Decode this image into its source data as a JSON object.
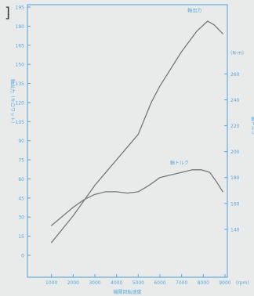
{
  "chart_data": {
    "type": "line",
    "x_ticks": [
      "1000",
      "2000",
      "3000",
      "4000",
      "5000",
      "6000",
      "7000",
      "8000",
      "9000"
    ],
    "x_unit": "(rpm)",
    "xlabel": "機関回転速度",
    "xlim": [
      0,
      9000
    ],
    "y_left_ticks": [
      "0",
      "15",
      "30",
      "45",
      "60",
      "75",
      "90",
      "105",
      "120",
      "135",
      "150",
      "165",
      "180",
      "195"
    ],
    "ylabel_left": "軸出力（キロワット）",
    "ylim_left": [
      0,
      195
    ],
    "y_right_ticks": [
      "140",
      "160",
      "180",
      "200",
      "220",
      "240",
      "260"
    ],
    "y_right_unit": "(N·m)",
    "ylabel_right": "軸トルク",
    "ylim_right": [
      120,
      280
    ],
    "series": [
      {
        "name": "軸出力",
        "axis": "left",
        "x": [
          1000,
          2000,
          3000,
          4000,
          5000,
          5600,
          6000,
          7000,
          7700,
          8200,
          8500,
          8900
        ],
        "y": [
          10,
          31,
          55,
          75,
          95,
          120,
          133,
          160,
          176,
          184,
          181,
          174
        ]
      },
      {
        "name": "軸トルク",
        "axis": "right",
        "x": [
          1000,
          1500,
          2000,
          2500,
          3000,
          3500,
          4000,
          4500,
          5000,
          5500,
          6000,
          6500,
          7000,
          7500,
          7900,
          8300,
          8600,
          8900
        ],
        "y": [
          143,
          150,
          157,
          163,
          167,
          169,
          169,
          168,
          169,
          174,
          180,
          182,
          184,
          186,
          186,
          184,
          177,
          169
        ]
      }
    ],
    "grid": false,
    "colors": {
      "axis": "#5aa8da",
      "line": "#777777",
      "paper": "#e9ebea"
    }
  }
}
